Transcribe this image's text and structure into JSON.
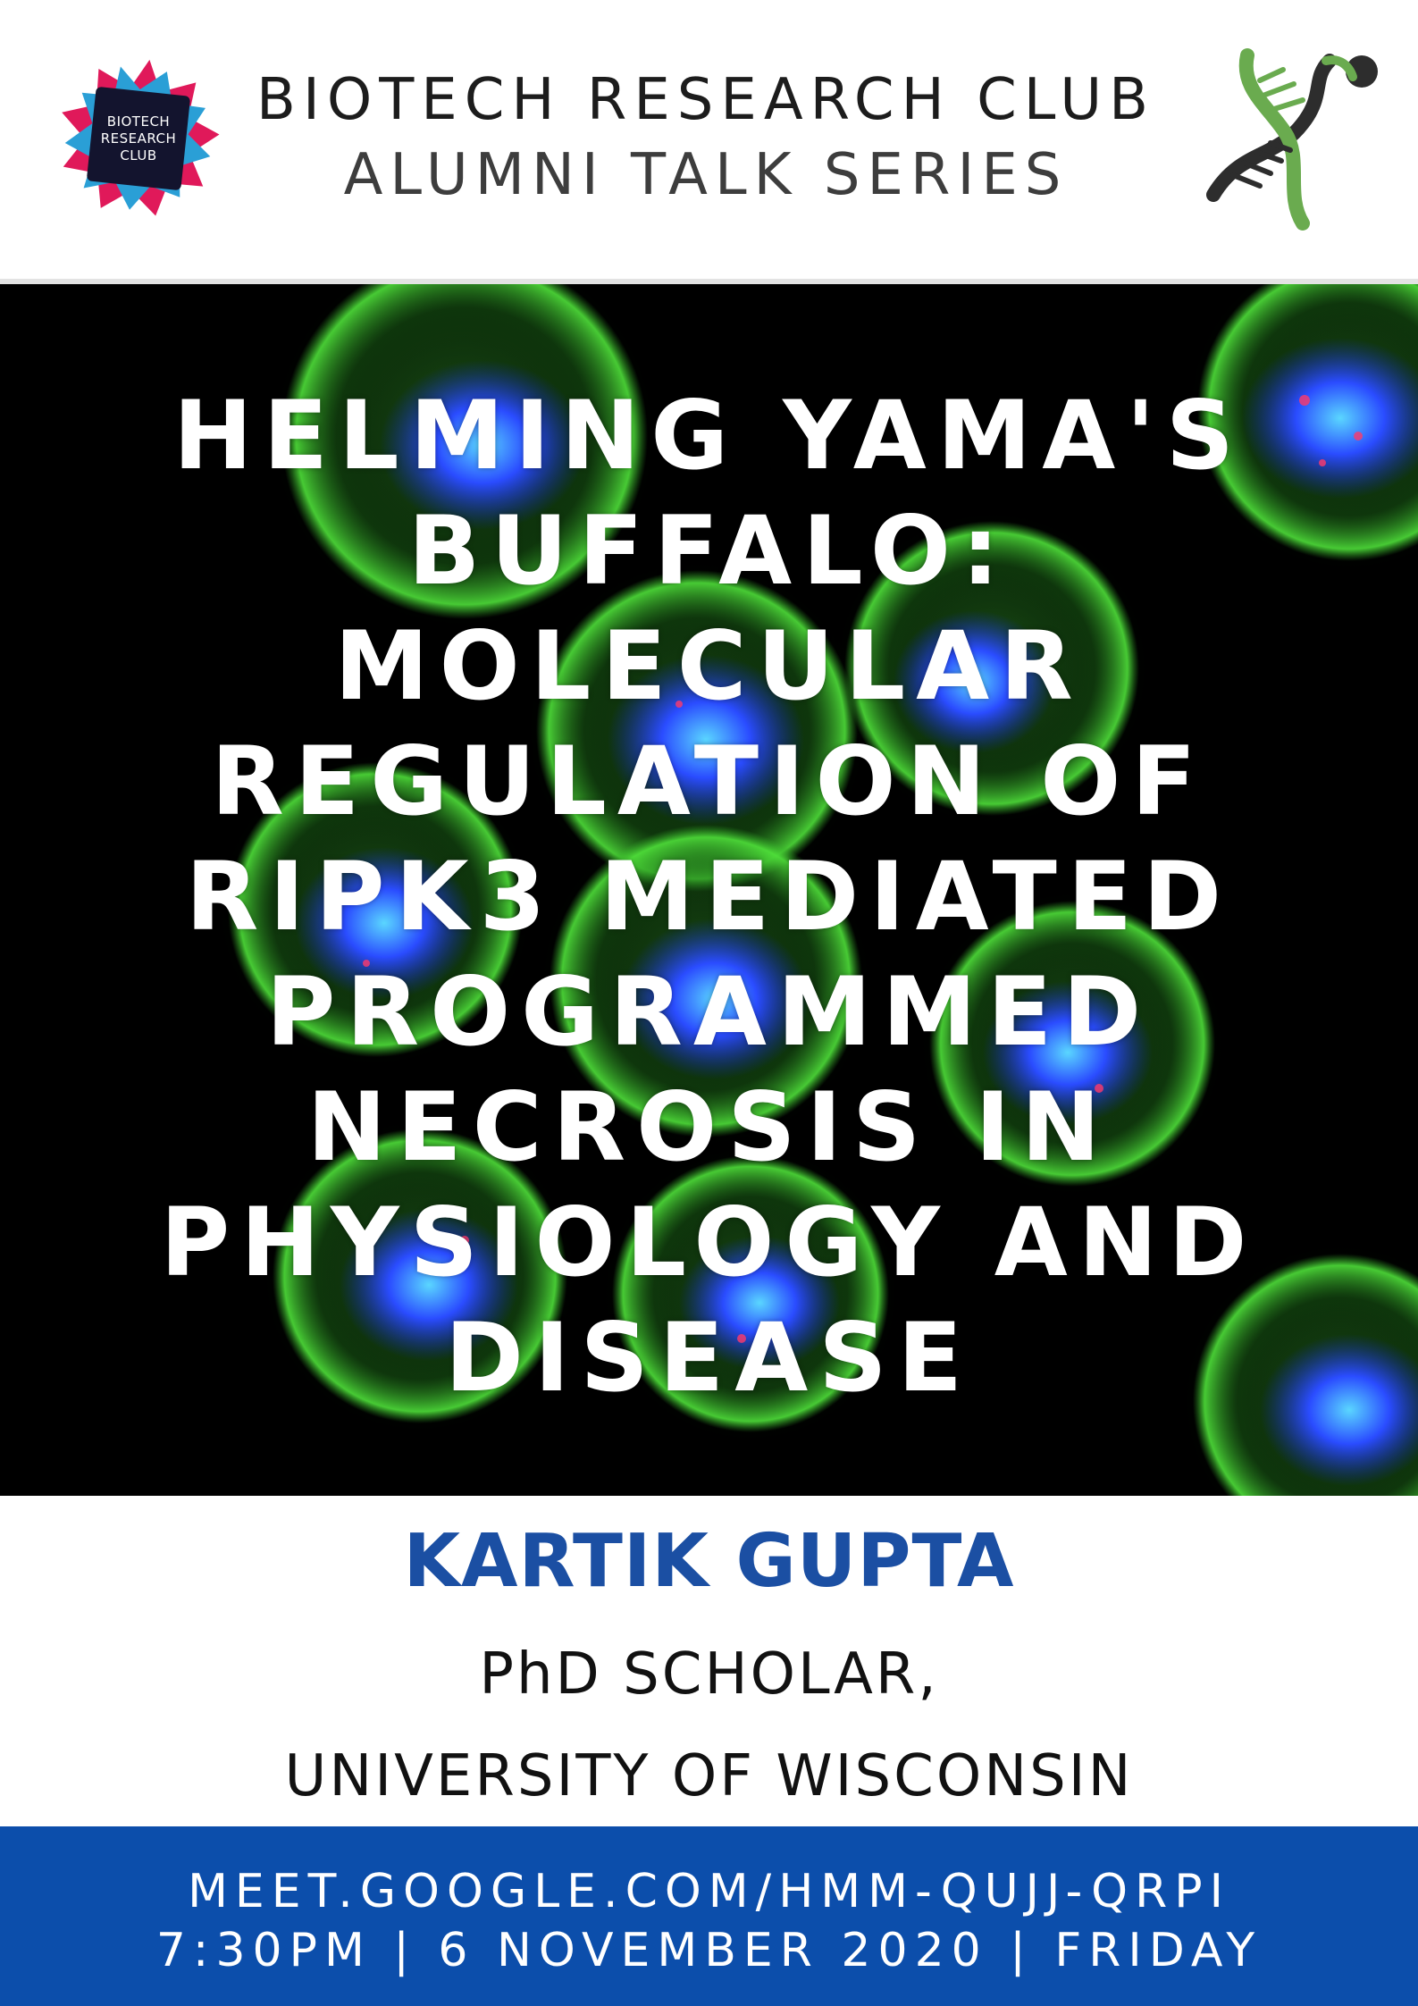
{
  "header": {
    "club_logo_text": [
      "BIOTECH",
      "RESEARCH",
      "CLUB"
    ],
    "title_line1": "BIOTECH RESEARCH CLUB",
    "title_line2": "ALUMNI TALK SERIES",
    "colors": {
      "logo_pink": "#e0195a",
      "logo_blue": "#2a9fd6",
      "logo_navy": "#13142e",
      "dna_green": "#6aab4f",
      "dna_dark": "#2d2d2d"
    }
  },
  "talk": {
    "title_lines": [
      "HELMING YAMA'S",
      "BUFFALO:",
      "MOLECULAR",
      "REGULATION OF",
      "RIPK3 MEDIATED",
      "PROGRAMMED",
      "NECROSIS IN",
      "PHYSIOLOGY AND",
      "DISEASE"
    ]
  },
  "speaker": {
    "name": "KARTIK GUPTA",
    "role": "PhD SCHOLAR,",
    "affiliation": "UNIVERSITY OF WISCONSIN"
  },
  "footer": {
    "meeting_link": "MEET.GOOGLE.COM/HMM-QUJJ-QRPI",
    "schedule": "7:30PM | 6 NOVEMBER 2020 | FRIDAY",
    "background": "#0c4eab"
  }
}
